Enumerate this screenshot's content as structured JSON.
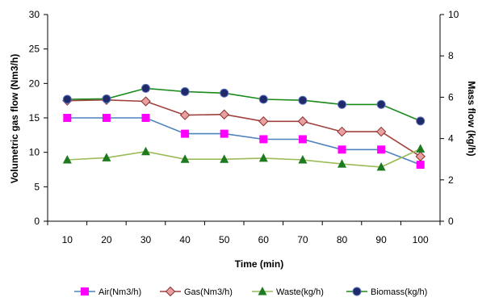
{
  "chart_data": {
    "type": "line",
    "x": [
      10,
      20,
      30,
      40,
      50,
      60,
      70,
      80,
      90,
      100
    ],
    "xlabel": "Time (min)",
    "ylabel": "Volumetric gas flow (Nm3/h)",
    "y2label": "Mass flow (kg/h)",
    "ylim": [
      0,
      30
    ],
    "yticks": [
      0,
      5,
      10,
      15,
      20,
      25,
      30
    ],
    "y2lim": [
      0,
      10
    ],
    "y2ticks": [
      0,
      2,
      4,
      6,
      8,
      10
    ],
    "grid": false,
    "legend_position": "bottom",
    "series": [
      {
        "name": "Air(Nm3/h)",
        "axis": "left",
        "color": "#4f81bd",
        "marker": "square",
        "marker_color": "#ff00ff",
        "values": [
          15.0,
          15.0,
          15.0,
          12.7,
          12.7,
          11.9,
          11.9,
          10.4,
          10.4,
          8.2
        ]
      },
      {
        "name": "Gas(Nm3/h)",
        "axis": "left",
        "color": "#a0413d",
        "marker": "diamond",
        "marker_color": "#e8a0a0",
        "values": [
          17.5,
          17.6,
          17.4,
          15.4,
          15.5,
          14.5,
          14.5,
          13.0,
          13.0,
          9.4
        ]
      },
      {
        "name": "Waste(kg/h)",
        "axis": "right",
        "color": "#9bbb59",
        "marker": "triangle",
        "marker_color": "#1e7a1e",
        "values": [
          2.97,
          3.07,
          3.37,
          3.0,
          3.0,
          3.05,
          2.97,
          2.77,
          2.62,
          3.5
        ]
      },
      {
        "name": "Biomass(kg/h)",
        "axis": "right",
        "color": "#1a8a1a",
        "marker": "circle",
        "marker_color": "#1f2a6b",
        "values": [
          5.9,
          5.92,
          6.43,
          6.27,
          6.2,
          5.9,
          5.85,
          5.65,
          5.65,
          4.85
        ]
      }
    ]
  }
}
